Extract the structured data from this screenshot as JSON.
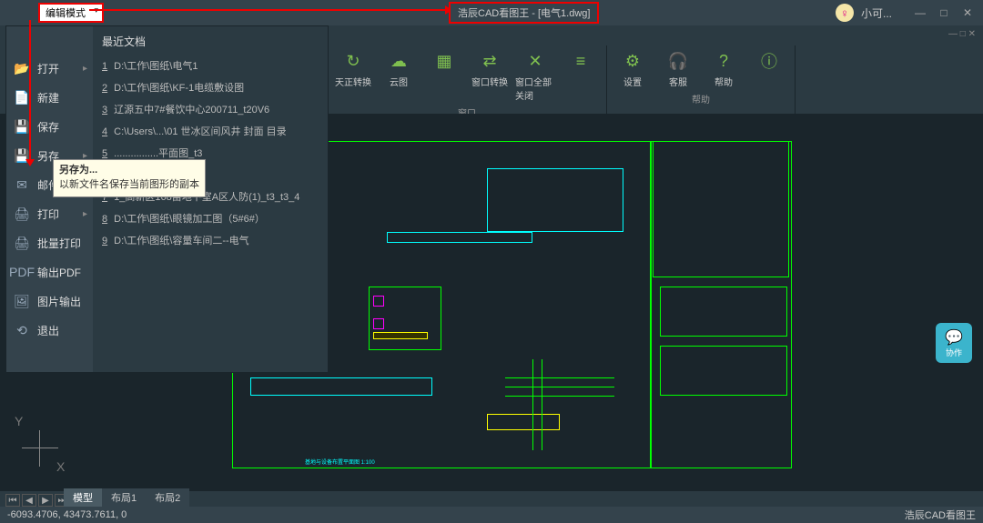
{
  "titlebar": {
    "mode": "编辑模式",
    "title": "浩辰CAD看图王 - [电气1.dwg]",
    "user": "小可..."
  },
  "ribbon": {
    "groups": [
      {
        "label": "窗口",
        "buttons": [
          {
            "icon": "↻",
            "text": "天正转换"
          },
          {
            "icon": "☁",
            "text": "云图"
          },
          {
            "icon": "▦",
            "text": ""
          },
          {
            "icon": "⇄",
            "text": "窗口转换"
          },
          {
            "icon": "✕",
            "text": "窗口全部关闭"
          },
          {
            "icon": "≡",
            "text": ""
          }
        ]
      },
      {
        "label": "帮助",
        "buttons": [
          {
            "icon": "⚙",
            "text": "设置"
          },
          {
            "icon": "🎧",
            "text": "客服"
          },
          {
            "icon": "?",
            "text": "帮助"
          },
          {
            "icon": "ⓘ",
            "text": ""
          }
        ]
      }
    ]
  },
  "filemenu": {
    "items": [
      {
        "icon": "📂",
        "label": "打开",
        "sub": true
      },
      {
        "icon": "📄",
        "label": "新建"
      },
      {
        "icon": "💾",
        "label": "保存"
      },
      {
        "icon": "💾",
        "label": "另存",
        "sub": true
      },
      {
        "icon": "✉",
        "label": "邮件发送"
      },
      {
        "icon": "🖨",
        "label": "打印",
        "sub": true
      },
      {
        "icon": "🖨",
        "label": "批量打印"
      },
      {
        "icon": "PDF",
        "label": "输出PDF"
      },
      {
        "icon": "🖼",
        "label": "图片输出"
      },
      {
        "icon": "⟲",
        "label": "退出"
      }
    ],
    "recent_title": "最近文档",
    "recent": [
      {
        "n": "1",
        "p": "D:\\工作\\图纸\\电气1"
      },
      {
        "n": "2",
        "p": "D:\\工作\\图纸\\KF-1电缆敷设图"
      },
      {
        "n": "3",
        "p": "辽源五中7#餐饮中心200711_t20V6"
      },
      {
        "n": "4",
        "p": "C:\\Users\\...\\01 世冰区间风井 封面 目录"
      },
      {
        "n": "5",
        "p": "................平面图_t3"
      },
      {
        "n": "6",
        "p": "................系统图_t3"
      },
      {
        "n": "7",
        "p": "1_高新区168亩地下室A区人防(1)_t3_t3_4"
      },
      {
        "n": "8",
        "p": "D:\\工作\\图纸\\眼镜加工图（5#6#）"
      },
      {
        "n": "9",
        "p": "D:\\工作\\图纸\\容量车间二--电气"
      }
    ],
    "tooltip_title": "另存为...",
    "tooltip_body": "以新文件名保存当前图形的副本"
  },
  "tabs": {
    "model": "模型",
    "layout1": "布局1",
    "layout2": "布局2"
  },
  "status": {
    "coords": "-6093.4706, 43473.7611, 0",
    "brand": "浩辰CAD看图王"
  },
  "chat": "协作",
  "axis": {
    "x": "X",
    "y": "Y"
  }
}
